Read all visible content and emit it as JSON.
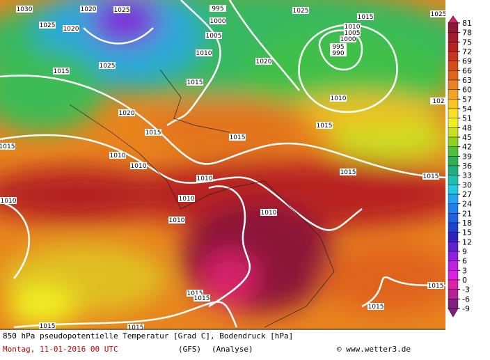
{
  "map": {
    "isobar_labels": [
      "1030",
      "1020",
      "1025",
      "995",
      "1000",
      "1005",
      "1010",
      "1025",
      "1015",
      "1010",
      "1005",
      "1000",
      "995",
      "990",
      "1025",
      "1020",
      "1025",
      "1015",
      "1020",
      "1015",
      "1010",
      "1020",
      "1015",
      "1015",
      "1015",
      "1010",
      "1010",
      "1015",
      "1010",
      "1015",
      "1015",
      "1010",
      "1010",
      "1010",
      "1010",
      "1015",
      "1015",
      "1015",
      "1015",
      "1015",
      "1015",
      "1025",
      "102"
    ]
  },
  "colorbar": {
    "ticks": [
      81,
      78,
      75,
      72,
      69,
      66,
      63,
      60,
      57,
      54,
      51,
      48,
      45,
      42,
      39,
      36,
      33,
      30,
      27,
      24,
      21,
      18,
      15,
      12,
      9,
      6,
      3,
      0,
      -3,
      -6,
      -9
    ],
    "colors": [
      "#d8206a",
      "#8c1838",
      "#a01c30",
      "#b42224",
      "#c8321e",
      "#d84c1c",
      "#e0641e",
      "#e88420",
      "#f0a420",
      "#f8c420",
      "#f8e024",
      "#f0f020",
      "#c8e020",
      "#90d020",
      "#50c03c",
      "#30b050",
      "#20b080",
      "#20c0b0",
      "#20c8e0",
      "#20a4f0",
      "#2080f0",
      "#2060e0",
      "#2040d0",
      "#3020c0",
      "#6020d0",
      "#9020e0",
      "#c020e0",
      "#e020e0",
      "#e020a8",
      "#b82098",
      "#802080"
    ]
  },
  "footer": {
    "title": "850 hPa pseudopotentielle Temperatur [Grad C], Bodendruck [hPa]",
    "date": "Montag, 11-01-2016  00 UTC",
    "model": "(GFS)",
    "run": "(Analyse)",
    "credit": "© www.wetter3.de"
  }
}
